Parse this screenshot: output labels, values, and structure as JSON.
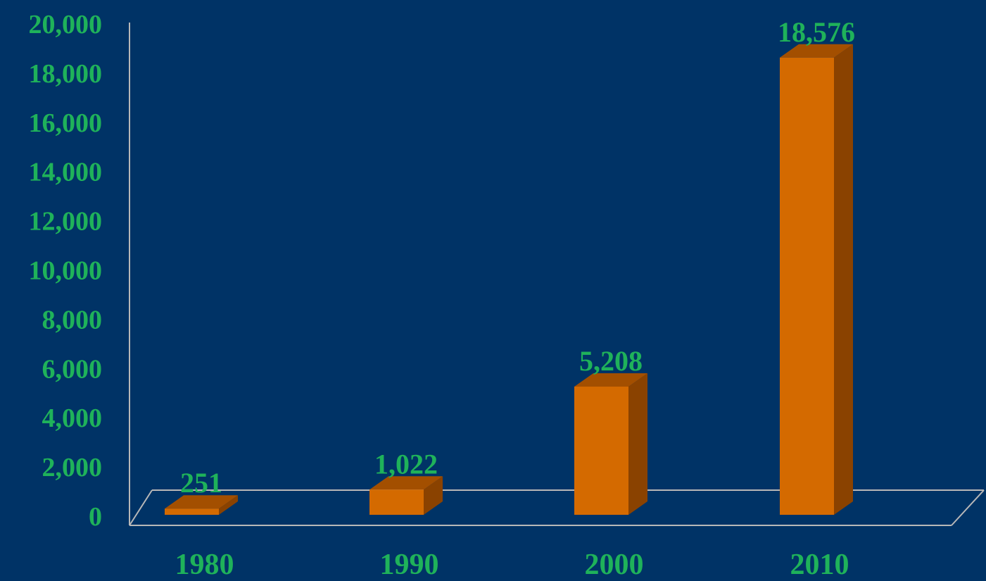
{
  "colors": {
    "background": "#003366",
    "text": "#1FB25A",
    "bar_front": "#D46A00",
    "bar_top": "#A34F00",
    "bar_side": "#8A4200",
    "axis": "#B8B8B8"
  },
  "chart_data": {
    "type": "bar",
    "style": "3d-column",
    "categories": [
      "1980",
      "1990",
      "2000",
      "2010"
    ],
    "values": [
      251,
      1022,
      5208,
      18576
    ],
    "data_labels": [
      "251",
      "1,022",
      "5,208",
      "18,576"
    ],
    "y_ticks": [
      "0",
      "2,000",
      "4,000",
      "6,000",
      "8,000",
      "10,000",
      "12,000",
      "14,000",
      "16,000",
      "18,000",
      "20,000"
    ],
    "ylim": [
      0,
      20000
    ],
    "grid": false,
    "legend": false,
    "title": "",
    "xlabel": "",
    "ylabel": ""
  }
}
